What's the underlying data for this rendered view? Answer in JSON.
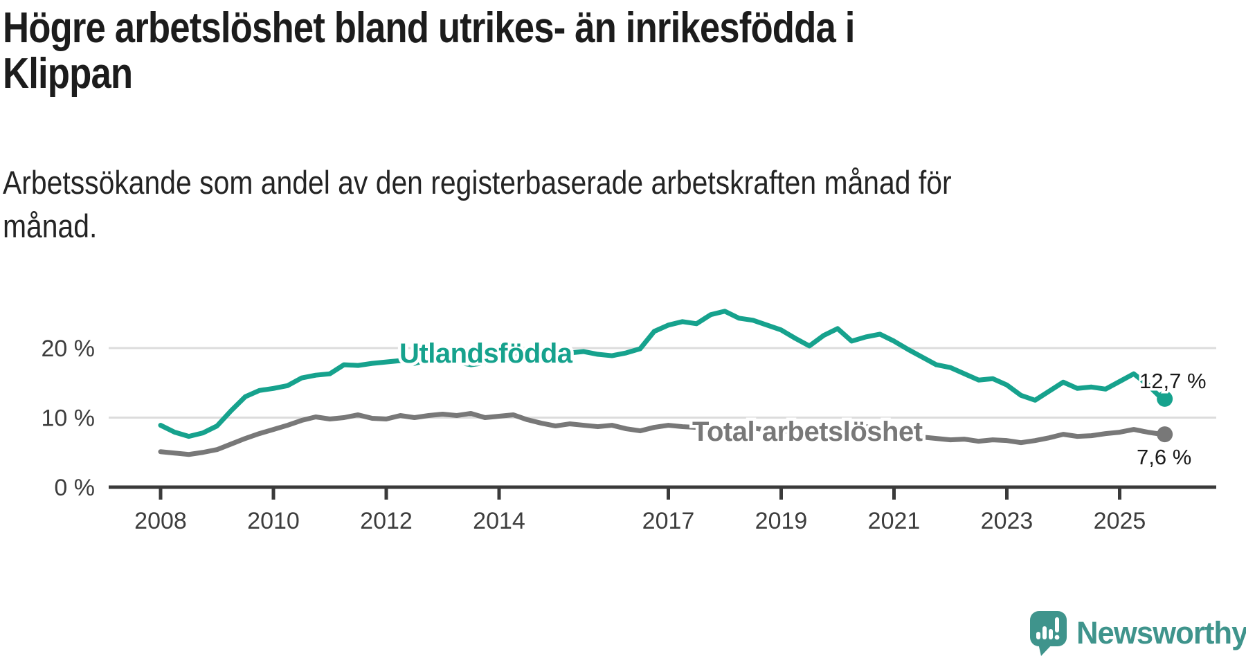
{
  "title": "Högre arbetslöshet bland utrikes- än inrikesfödda i\nKlippan",
  "subtitle": "Arbetssökande som andel av den registerbaserade arbetskraften månad för\nmånad.",
  "branding": {
    "wordmark": "Newsworthy",
    "icon": "speech-bubble-with-bar-chart-and-exclamation",
    "color": "#3f948c"
  },
  "colors": {
    "background": "#ffffff",
    "gridline": "#dcdcdc",
    "axis": "#3a3a3a",
    "axis_text": "#3d3d3d",
    "annotation_text": "#1a1a1a",
    "foreign_born_line": "#16a28d",
    "total_line": "#787878"
  },
  "chart_data": {
    "type": "line",
    "x_start": 2008.0,
    "x_end": 2025.75,
    "x_step_years": 0.25,
    "xlim": [
      2007.1,
      2026.7
    ],
    "ylim": [
      0,
      27
    ],
    "grid": "horizontal",
    "legend_position": "inline-labels-on-lines",
    "y_ticks": [
      {
        "value": 0,
        "label": "0 %"
      },
      {
        "value": 10,
        "label": "10 %"
      },
      {
        "value": 20,
        "label": "20 %"
      }
    ],
    "x_ticks": [
      {
        "value": 2008,
        "label": "2008"
      },
      {
        "value": 2010,
        "label": "2010"
      },
      {
        "value": 2012,
        "label": "2012"
      },
      {
        "value": 2014,
        "label": "2014"
      },
      {
        "value": 2017,
        "label": "2017"
      },
      {
        "value": 2019,
        "label": "2019"
      },
      {
        "value": 2021,
        "label": "2021"
      },
      {
        "value": 2023,
        "label": "2023"
      },
      {
        "value": 2025,
        "label": "2025"
      }
    ],
    "series": [
      {
        "name": "Utlandsfödda",
        "color": "#16a28d",
        "end_value": 12.7,
        "end_value_label": "12,7 %",
        "values": [
          8.9,
          7.9,
          7.3,
          7.8,
          8.8,
          11.0,
          13.0,
          13.9,
          14.2,
          14.6,
          15.7,
          16.1,
          16.3,
          17.6,
          17.5,
          17.8,
          18.0,
          18.2,
          17.8,
          18.3,
          18.2,
          18.0,
          17.6,
          17.9,
          18.7,
          19.3,
          18.9,
          19.1,
          19.0,
          19.3,
          19.5,
          19.1,
          18.9,
          19.3,
          19.9,
          22.4,
          23.3,
          23.8,
          23.5,
          24.8,
          25.3,
          24.3,
          24.0,
          23.3,
          22.6,
          21.4,
          20.3,
          21.8,
          22.8,
          21.0,
          21.6,
          22.0,
          21.0,
          19.8,
          18.7,
          17.6,
          17.2,
          16.3,
          15.4,
          15.6,
          14.7,
          13.2,
          12.5,
          13.8,
          15.1,
          14.2,
          14.4,
          14.1,
          15.2,
          16.3,
          14.7,
          12.7
        ]
      },
      {
        "name": "Total arbetslöshet",
        "color": "#787878",
        "end_value": 7.6,
        "end_value_label": "7,6 %",
        "values": [
          5.1,
          4.9,
          4.7,
          5.0,
          5.4,
          6.2,
          7.0,
          7.7,
          8.3,
          8.9,
          9.6,
          10.1,
          9.8,
          10.0,
          10.4,
          9.9,
          9.8,
          10.3,
          10.0,
          10.3,
          10.5,
          10.3,
          10.6,
          10.0,
          10.2,
          10.4,
          9.7,
          9.2,
          8.8,
          9.1,
          8.9,
          8.7,
          8.9,
          8.4,
          8.1,
          8.6,
          8.9,
          8.7,
          8.6,
          8.9,
          8.7,
          8.4,
          8.5,
          8.2,
          8.1,
          7.9,
          8.0,
          7.8,
          8.2,
          8.9,
          8.7,
          8.4,
          8.0,
          7.6,
          7.2,
          7.0,
          6.8,
          6.9,
          6.6,
          6.8,
          6.7,
          6.4,
          6.7,
          7.1,
          7.6,
          7.3,
          7.4,
          7.7,
          7.9,
          8.3,
          7.9,
          7.6
        ]
      }
    ]
  }
}
